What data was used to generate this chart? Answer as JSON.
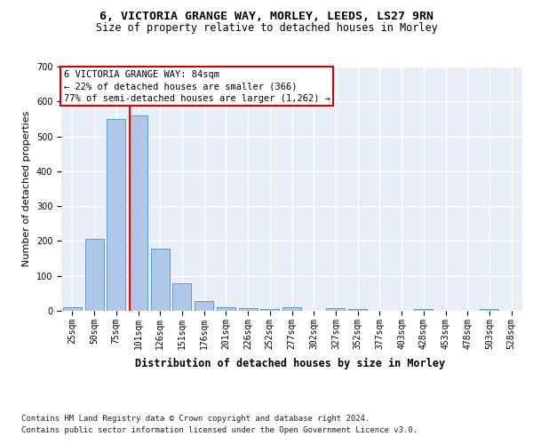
{
  "title1": "6, VICTORIA GRANGE WAY, MORLEY, LEEDS, LS27 9RN",
  "title2": "Size of property relative to detached houses in Morley",
  "xlabel": "Distribution of detached houses by size in Morley",
  "ylabel": "Number of detached properties",
  "bar_labels": [
    "25sqm",
    "50sqm",
    "75sqm",
    "101sqm",
    "126sqm",
    "151sqm",
    "176sqm",
    "201sqm",
    "226sqm",
    "252sqm",
    "277sqm",
    "302sqm",
    "327sqm",
    "352sqm",
    "377sqm",
    "403sqm",
    "428sqm",
    "453sqm",
    "478sqm",
    "503sqm",
    "528sqm"
  ],
  "bar_values": [
    10,
    205,
    550,
    560,
    178,
    78,
    28,
    10,
    8,
    5,
    10,
    0,
    8,
    5,
    0,
    0,
    5,
    0,
    0,
    5,
    0
  ],
  "bar_color": "#aec6e8",
  "bar_edge_color": "#5b9bd5",
  "bg_color": "#e8eef5",
  "grid_color": "#ffffff",
  "red_line_x": 2.62,
  "annotation_title": "6 VICTORIA GRANGE WAY: 84sqm",
  "annotation_line1": "← 22% of detached houses are smaller (366)",
  "annotation_line2": "77% of semi-detached houses are larger (1,262) →",
  "annotation_box_color": "#ffffff",
  "annotation_box_edge": "#cc0000",
  "ylim": [
    0,
    700
  ],
  "yticks": [
    0,
    100,
    200,
    300,
    400,
    500,
    600,
    700
  ],
  "footer1": "Contains HM Land Registry data © Crown copyright and database right 2024.",
  "footer2": "Contains public sector information licensed under the Open Government Licence v3.0.",
  "title1_fontsize": 9.5,
  "title2_fontsize": 8.5,
  "ylabel_fontsize": 8,
  "xlabel_fontsize": 8.5,
  "tick_fontsize": 7,
  "footer_fontsize": 6.5,
  "ann_fontsize": 7.5
}
